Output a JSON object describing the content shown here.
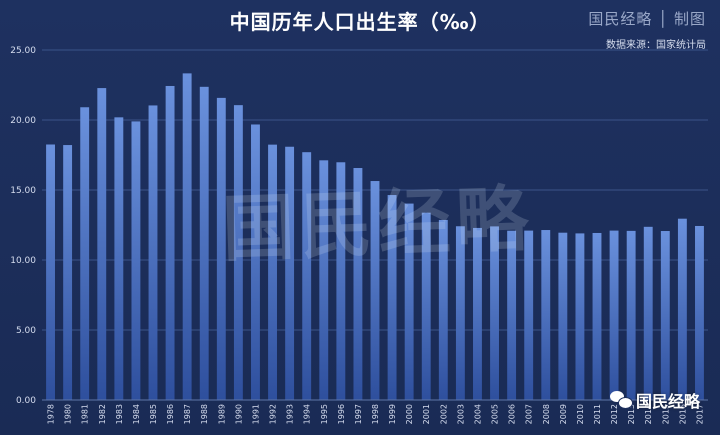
{
  "header": {
    "title": "中国历年人口出生率（‰）",
    "brand": "国民经略 │ 制图",
    "source": "数据来源：国家统计局"
  },
  "watermark": "国民经略",
  "wechat_label": "国民经略",
  "colors": {
    "bar_top": "#6a91dd",
    "bar_bottom": "#2e4f9d",
    "grid": "#3b5389",
    "background": "#1e3160"
  },
  "chart_data": {
    "type": "bar",
    "title": "中国历年人口出生率（‰）",
    "xlabel": "",
    "ylabel": "",
    "ylim": [
      0,
      25
    ],
    "yticks": [
      "0.00",
      "5.00",
      "10.00",
      "15.00",
      "20.00",
      "25.00"
    ],
    "grid": true,
    "categories": [
      "1978",
      "1980",
      "1981",
      "1982",
      "1983",
      "1984",
      "1985",
      "1986",
      "1987",
      "1988",
      "1989",
      "1990",
      "1991",
      "1992",
      "1993",
      "1994",
      "1995",
      "1996",
      "1997",
      "1998",
      "1999",
      "2000",
      "2001",
      "2002",
      "2003",
      "2004",
      "2005",
      "2006",
      "2007",
      "2008",
      "2009",
      "2010",
      "2011",
      "2012",
      "2013",
      "2014",
      "2015",
      "2016",
      "2017"
    ],
    "values": [
      18.25,
      18.21,
      20.91,
      22.28,
      20.19,
      19.9,
      21.04,
      22.43,
      23.33,
      22.37,
      21.58,
      21.06,
      19.68,
      18.24,
      18.09,
      17.7,
      17.12,
      16.98,
      16.57,
      15.64,
      14.64,
      14.03,
      13.38,
      12.86,
      12.41,
      12.29,
      12.4,
      12.09,
      12.1,
      12.14,
      11.95,
      11.9,
      11.93,
      12.1,
      12.08,
      12.37,
      12.07,
      12.95,
      12.43
    ]
  }
}
